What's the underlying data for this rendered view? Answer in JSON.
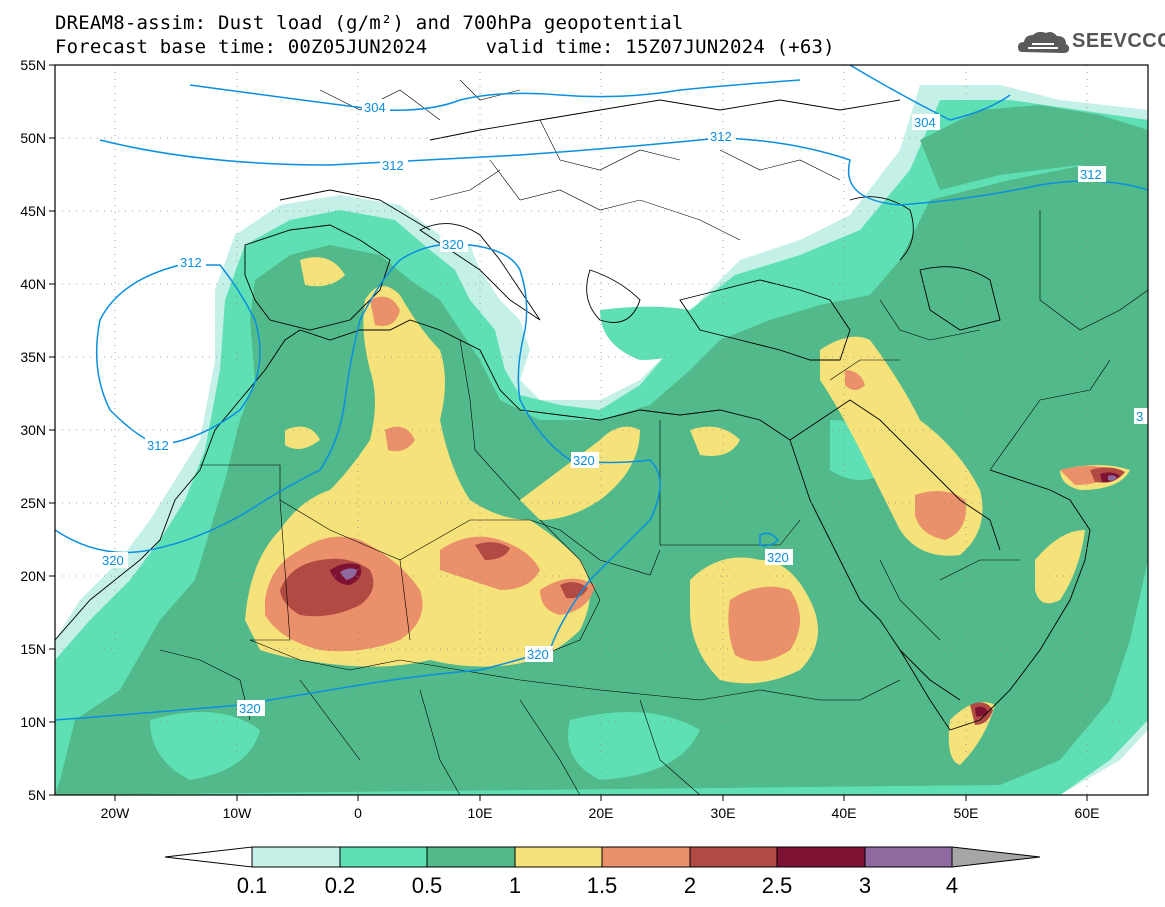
{
  "header": {
    "title_line1": "DREAM8-assim: Dust load (g/m²) and 700hPa geopotential",
    "title_line2": "Forecast base time: 00Z05JUN2024     valid time: 15Z07JUN2024 (+63)",
    "logo_text": "SEEVCCC"
  },
  "lat_ticks": [
    "55N",
    "50N",
    "45N",
    "40N",
    "35N",
    "30N",
    "25N",
    "20N",
    "15N",
    "10N",
    "5N"
  ],
  "lon_ticks": [
    "20W",
    "10W",
    "0",
    "10E",
    "20E",
    "30E",
    "40E",
    "50E",
    "60E"
  ],
  "contour_labels": [
    "304",
    "304",
    "312",
    "312",
    "312",
    "312",
    "312",
    "320",
    "320",
    "320",
    "320",
    "320",
    "320",
    "3"
  ],
  "colorbar": {
    "labels": [
      "0.1",
      "0.2",
      "0.5",
      "1",
      "1.5",
      "2",
      "2.5",
      "3",
      "4"
    ],
    "colors": [
      "#c4f0e8",
      "#5ee0b4",
      "#52b98a",
      "#f5e27a",
      "#ea906a",
      "#b14a42",
      "#7e1232",
      "#8e6aa0",
      "#a6a6a6"
    ]
  },
  "colors": {
    "geopotential_contour": "#0a8fe0",
    "background": "#ffffff"
  }
}
